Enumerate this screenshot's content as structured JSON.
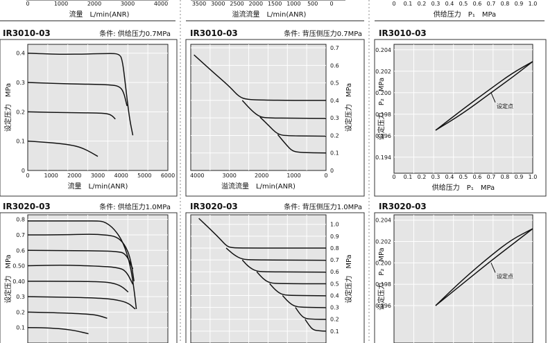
{
  "colors": {
    "plot_bg": "#e5e5e5",
    "grid": "#ffffff",
    "ink": "#111111"
  },
  "top_strip": {
    "left": {
      "ticks": [
        "0",
        "1000",
        "2000",
        "3000",
        "4000"
      ],
      "xlabel": "流量　L/min(ANR)"
    },
    "middle": {
      "ticks": [
        "3500",
        "3000",
        "2500",
        "2000",
        "1500",
        "1000",
        "500",
        "0"
      ],
      "xlabel": "溢流流量　L/min(ANR)"
    },
    "right": {
      "ticks": [
        "0",
        "0.1",
        "0.2",
        "0.3",
        "0.4",
        "0.5",
        "0.6",
        "0.7",
        "0.8",
        "0.9",
        "1.0"
      ],
      "xlabel": "供给压力　P₁　MPa"
    }
  },
  "chart_data": [
    {
      "id": "flow-0.7",
      "type": "line",
      "model": "IR3010-03",
      "condition": "条件: 供给压力0.7MPa",
      "xlabel": "流量　L/min(ANR)",
      "ylabel": "设定压力　MPa",
      "xlim": [
        0,
        6000
      ],
      "ylim": [
        0,
        0.43
      ],
      "xticks": [
        0,
        1000,
        2000,
        3000,
        4000,
        5000,
        6000
      ],
      "yticks": [
        0,
        0.1,
        0.2,
        0.3,
        0.4
      ],
      "ytick_labels": [
        "0",
        "0.1",
        "0.2",
        "0.3",
        "0.4"
      ],
      "series": [
        {
          "points": [
            [
              0,
              0.4
            ],
            [
              600,
              0.398
            ],
            [
              1500,
              0.396
            ],
            [
              2500,
              0.397
            ],
            [
              3500,
              0.399
            ],
            [
              3900,
              0.398
            ],
            [
              4050,
              0.38
            ],
            [
              4200,
              0.28
            ],
            [
              4350,
              0.18
            ],
            [
              4500,
              0.12
            ]
          ]
        },
        {
          "points": [
            [
              0,
              0.3
            ],
            [
              800,
              0.298
            ],
            [
              1800,
              0.295
            ],
            [
              2800,
              0.294
            ],
            [
              3500,
              0.292
            ],
            [
              3900,
              0.288
            ],
            [
              4100,
              0.27
            ],
            [
              4250,
              0.22
            ]
          ]
        },
        {
          "points": [
            [
              0,
              0.2
            ],
            [
              1000,
              0.198
            ],
            [
              2000,
              0.197
            ],
            [
              3000,
              0.196
            ],
            [
              3400,
              0.194
            ],
            [
              3600,
              0.188
            ],
            [
              3750,
              0.175
            ]
          ]
        },
        {
          "points": [
            [
              0,
              0.1
            ],
            [
              600,
              0.097
            ],
            [
              1200,
              0.093
            ],
            [
              1800,
              0.088
            ],
            [
              2300,
              0.078
            ],
            [
              2700,
              0.062
            ],
            [
              3000,
              0.048
            ]
          ]
        }
      ]
    },
    {
      "id": "relief-0.7",
      "type": "line",
      "model": "IR3010-03",
      "condition": "条件: 背压侧压力0.7MPa",
      "xlabel": "溢流流量　L/min(ANR)",
      "ylabel": "设定压力　MPa",
      "xlim": [
        4200,
        0
      ],
      "ylim": [
        0,
        0.72
      ],
      "xticks": [
        4000,
        3000,
        2000,
        1000,
        0
      ],
      "yticks": [
        0,
        0.1,
        0.2,
        0.3,
        0.4,
        0.5,
        0.6,
        0.7
      ],
      "ytick_labels": [
        "0",
        "0.1",
        "0.2",
        "0.3",
        "0.4",
        "0.5",
        "0.6",
        "0.7"
      ],
      "series": [
        {
          "points": [
            [
              4100,
              0.66
            ],
            [
              3500,
              0.56
            ],
            [
              3000,
              0.48
            ],
            [
              2700,
              0.42
            ],
            [
              2450,
              0.405
            ],
            [
              2000,
              0.402
            ],
            [
              1000,
              0.4
            ],
            [
              0,
              0.4
            ]
          ]
        },
        {
          "points": [
            [
              2600,
              0.4
            ],
            [
              2300,
              0.34
            ],
            [
              2050,
              0.305
            ],
            [
              1800,
              0.3
            ],
            [
              1000,
              0.298
            ],
            [
              0,
              0.297
            ]
          ]
        },
        {
          "points": [
            [
              2050,
              0.305
            ],
            [
              1800,
              0.26
            ],
            [
              1500,
              0.205
            ],
            [
              1200,
              0.198
            ],
            [
              500,
              0.197
            ],
            [
              0,
              0.196
            ]
          ]
        },
        {
          "points": [
            [
              1500,
              0.205
            ],
            [
              1250,
              0.15
            ],
            [
              1050,
              0.11
            ],
            [
              800,
              0.103
            ],
            [
              400,
              0.101
            ],
            [
              0,
              0.1
            ]
          ]
        }
      ]
    },
    {
      "id": "pressure-0.7",
      "type": "line",
      "model": "IR3010-03",
      "xlabel": "供给压力　P₁　MPa",
      "ylabel": "设定压力　P₂　MPa",
      "xlim": [
        0,
        1.0
      ],
      "ylim": [
        0.1925,
        0.2045
      ],
      "xticks": [
        0,
        0.1,
        0.2,
        0.3,
        0.4,
        0.5,
        0.6,
        0.7,
        0.8,
        0.9,
        1.0
      ],
      "xtick_labels": [
        "0",
        "0.1",
        "0.2",
        "0.3",
        "0.4",
        "0.5",
        "0.6",
        "0.7",
        "0.8",
        "0.9",
        "1.0"
      ],
      "yticks": [
        0.194,
        0.196,
        0.198,
        0.2,
        0.202,
        0.204
      ],
      "ytick_labels": [
        "0.194",
        "0.196",
        "0.198",
        "0.200",
        "0.202",
        "0.204"
      ],
      "annotation": {
        "text": "设定点",
        "x": 0.7,
        "y": 0.2
      },
      "series": [
        {
          "points": [
            [
              0.3,
              0.1965
            ],
            [
              0.5,
              0.1985
            ],
            [
              0.7,
              0.2004
            ],
            [
              0.85,
              0.2018
            ],
            [
              1.0,
              0.2029
            ]
          ]
        },
        {
          "points": [
            [
              1.0,
              0.2029
            ],
            [
              0.85,
              0.2014
            ],
            [
              0.7,
              0.2
            ],
            [
              0.5,
              0.1981
            ],
            [
              0.3,
              0.1965
            ]
          ]
        }
      ]
    },
    {
      "id": "flow-1.0",
      "type": "line",
      "model": "IR3020-03",
      "condition": "条件: 供给压力1.0MPa",
      "ylabel": "设定压力　MPa",
      "xlim": [
        0,
        6000
      ],
      "ylim": [
        0,
        0.83
      ],
      "yticks": [
        0.1,
        0.2,
        0.3,
        0.4,
        0.5,
        0.6,
        0.7,
        0.8
      ],
      "ytick_labels": [
        "0.1",
        "0.2",
        "0.3",
        "0.40",
        "0.50",
        "0.6",
        "0.7",
        "0.8"
      ],
      "series": [
        {
          "points": [
            [
              0,
              0.79
            ],
            [
              1500,
              0.79
            ],
            [
              2500,
              0.79
            ],
            [
              3000,
              0.79
            ],
            [
              3300,
              0.785
            ],
            [
              3700,
              0.74
            ],
            [
              4100,
              0.65
            ],
            [
              4400,
              0.5
            ],
            [
              4550,
              0.35
            ],
            [
              4650,
              0.22
            ]
          ]
        },
        {
          "points": [
            [
              0,
              0.7
            ],
            [
              1500,
              0.7
            ],
            [
              2700,
              0.705
            ],
            [
              3300,
              0.7
            ],
            [
              3800,
              0.69
            ],
            [
              4150,
              0.64
            ],
            [
              4400,
              0.55
            ],
            [
              4550,
              0.4
            ]
          ]
        },
        {
          "points": [
            [
              0,
              0.6
            ],
            [
              2000,
              0.598
            ],
            [
              3000,
              0.597
            ],
            [
              3800,
              0.593
            ],
            [
              4200,
              0.58
            ],
            [
              4500,
              0.48
            ]
          ]
        },
        {
          "points": [
            [
              0,
              0.5
            ],
            [
              1500,
              0.505
            ],
            [
              3000,
              0.498
            ],
            [
              3800,
              0.49
            ],
            [
              4200,
              0.47
            ],
            [
              4500,
              0.38
            ]
          ]
        },
        {
          "points": [
            [
              0,
              0.4
            ],
            [
              1500,
              0.4
            ],
            [
              3000,
              0.398
            ],
            [
              3600,
              0.39
            ],
            [
              4000,
              0.37
            ],
            [
              4300,
              0.33
            ]
          ]
        },
        {
          "points": [
            [
              0,
              0.3
            ],
            [
              2000,
              0.296
            ],
            [
              3200,
              0.29
            ],
            [
              3800,
              0.28
            ],
            [
              4300,
              0.26
            ],
            [
              4600,
              0.22
            ]
          ]
        },
        {
          "points": [
            [
              0,
              0.2
            ],
            [
              1500,
              0.195
            ],
            [
              2500,
              0.188
            ],
            [
              3000,
              0.18
            ],
            [
              3400,
              0.16
            ]
          ]
        },
        {
          "points": [
            [
              0,
              0.1
            ],
            [
              800,
              0.098
            ],
            [
              1500,
              0.092
            ],
            [
              2100,
              0.078
            ],
            [
              2600,
              0.06
            ]
          ]
        }
      ]
    },
    {
      "id": "relief-1.0",
      "type": "line",
      "model": "IR3020-03",
      "condition": "条件: 背压侧压力1.0MPa",
      "ylabel": "设定压力　MPa",
      "xlim": [
        4200,
        0
      ],
      "ylim": [
        0,
        1.08
      ],
      "yticks": [
        0.1,
        0.2,
        0.3,
        0.4,
        0.5,
        0.6,
        0.7,
        0.8,
        0.9,
        1.0
      ],
      "ytick_labels": [
        "0.1",
        "0.2",
        "0.3",
        "0.4",
        "0.5",
        "0.6",
        "0.7",
        "0.8",
        "0.9",
        "1.0"
      ],
      "series": [
        {
          "points": [
            [
              3950,
              1.05
            ],
            [
              3600,
              0.96
            ],
            [
              3300,
              0.88
            ],
            [
              3100,
              0.82
            ],
            [
              2950,
              0.802
            ],
            [
              2500,
              0.8
            ],
            [
              1500,
              0.8
            ],
            [
              0,
              0.8
            ]
          ]
        },
        {
          "points": [
            [
              3100,
              0.8
            ],
            [
              2850,
              0.74
            ],
            [
              2600,
              0.705
            ],
            [
              2300,
              0.7
            ],
            [
              1000,
              0.698
            ],
            [
              0,
              0.697
            ]
          ]
        },
        {
          "points": [
            [
              2600,
              0.7
            ],
            [
              2400,
              0.64
            ],
            [
              2150,
              0.602
            ],
            [
              1800,
              0.6
            ],
            [
              1000,
              0.598
            ],
            [
              0,
              0.597
            ]
          ]
        },
        {
          "points": [
            [
              2150,
              0.6
            ],
            [
              1950,
              0.54
            ],
            [
              1750,
              0.505
            ],
            [
              1400,
              0.5
            ],
            [
              0,
              0.499
            ]
          ]
        },
        {
          "points": [
            [
              1750,
              0.5
            ],
            [
              1550,
              0.44
            ],
            [
              1350,
              0.405
            ],
            [
              1000,
              0.4
            ],
            [
              0,
              0.398
            ]
          ]
        },
        {
          "points": [
            [
              1350,
              0.4
            ],
            [
              1150,
              0.34
            ],
            [
              950,
              0.305
            ],
            [
              600,
              0.3
            ],
            [
              0,
              0.298
            ]
          ]
        },
        {
          "points": [
            [
              950,
              0.3
            ],
            [
              800,
              0.24
            ],
            [
              650,
              0.205
            ],
            [
              350,
              0.2
            ],
            [
              0,
              0.199
            ]
          ]
        },
        {
          "points": [
            [
              650,
              0.2
            ],
            [
              530,
              0.15
            ],
            [
              400,
              0.11
            ],
            [
              200,
              0.102
            ],
            [
              0,
              0.1
            ]
          ]
        }
      ]
    },
    {
      "id": "pressure-1.0",
      "type": "line",
      "model": "IR3020-03",
      "ylabel": "设定压力　P₂　MPa",
      "xlim": [
        0,
        1.0
      ],
      "ylim": [
        0.1925,
        0.2045
      ],
      "yticks": [
        0.196,
        0.198,
        0.2,
        0.202,
        0.204
      ],
      "ytick_labels": [
        "0.196",
        "0.198",
        "0.200",
        "0.202",
        "0.204"
      ],
      "annotation": {
        "text": "设定点",
        "x": 0.7,
        "y": 0.2
      },
      "series": [
        {
          "points": [
            [
              0.3,
              0.196
            ],
            [
              0.5,
              0.1985
            ],
            [
              0.7,
              0.2007
            ],
            [
              0.85,
              0.2022
            ],
            [
              1.0,
              0.2032
            ]
          ]
        },
        {
          "points": [
            [
              1.0,
              0.2032
            ],
            [
              0.85,
              0.2017
            ],
            [
              0.7,
              0.2002
            ],
            [
              0.5,
              0.1981
            ],
            [
              0.3,
              0.196
            ]
          ]
        }
      ]
    }
  ]
}
